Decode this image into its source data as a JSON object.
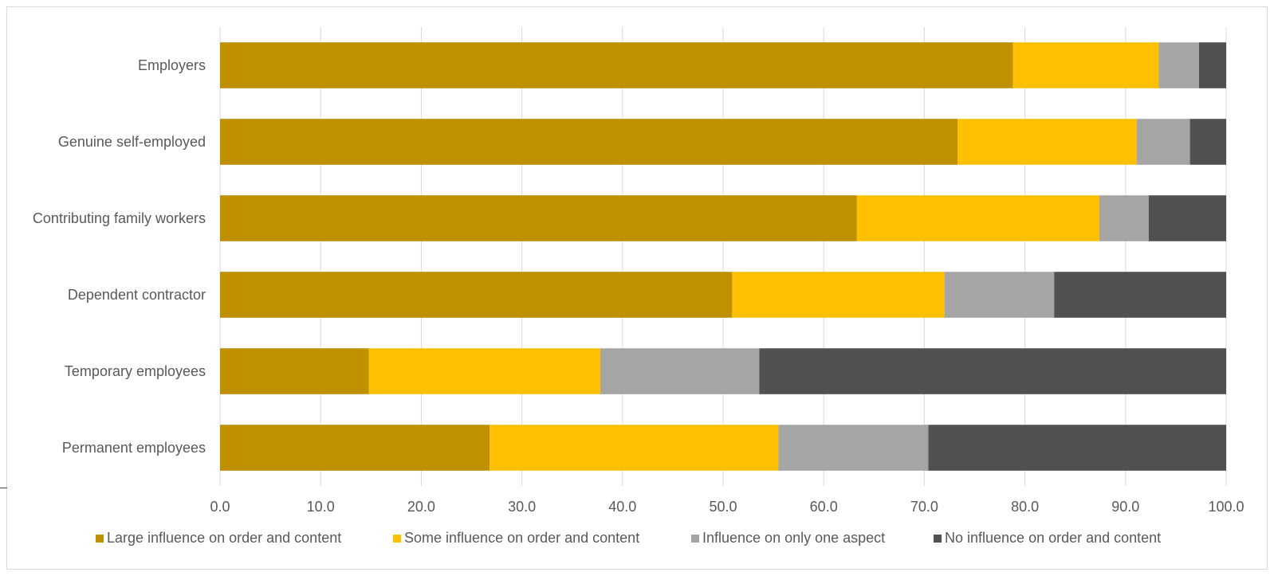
{
  "chart_data": {
    "type": "bar",
    "orientation": "horizontal",
    "stacked": true,
    "categories": [
      "Employers",
      "Genuine self-employed",
      "Contributing family workers",
      "Dependent contractor",
      "Temporary employees",
      "Permanent employees"
    ],
    "series": [
      {
        "name": "Large influence on order and content",
        "color": "#bf9000",
        "values": [
          78.8,
          73.3,
          63.3,
          50.9,
          14.8,
          26.8
        ]
      },
      {
        "name": "Some influence on order and content",
        "color": "#ffc000",
        "values": [
          14.5,
          17.8,
          24.1,
          21.1,
          23.0,
          28.7
        ]
      },
      {
        "name": "Influence on only one aspect",
        "color": "#a5a5a5",
        "values": [
          4.0,
          5.3,
          4.9,
          10.9,
          15.8,
          14.9
        ]
      },
      {
        "name": "No influence on order and content",
        "color": "#515151",
        "values": [
          2.7,
          3.6,
          7.7,
          17.1,
          46.4,
          29.6
        ]
      }
    ],
    "xlim": [
      0,
      100
    ],
    "xticks": [
      "0.0",
      "10.0",
      "20.0",
      "30.0",
      "40.0",
      "50.0",
      "60.0",
      "70.0",
      "80.0",
      "90.0",
      "100.0"
    ],
    "grid": true,
    "legend_position": "bottom"
  }
}
